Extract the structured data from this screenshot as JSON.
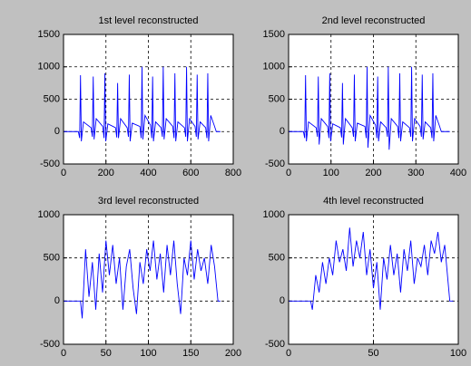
{
  "chart_data": [
    {
      "type": "line",
      "title": "1st level reconstructed",
      "color": "#0000ff",
      "grid": true,
      "xlim": [
        0,
        800
      ],
      "xticks": [
        0,
        200,
        400,
        600,
        800
      ],
      "ylim": [
        -500,
        1500
      ],
      "yticks": [
        -500,
        0,
        500,
        1000,
        1500
      ],
      "x": [
        0,
        70,
        76,
        80,
        84,
        94,
        130,
        136,
        140,
        144,
        154,
        185,
        191,
        195,
        199,
        209,
        245,
        251,
        255,
        259,
        269,
        300,
        306,
        310,
        314,
        324,
        360,
        366,
        370,
        374,
        384,
        410,
        416,
        420,
        424,
        434,
        460,
        466,
        470,
        474,
        484,
        515,
        521,
        525,
        529,
        539,
        570,
        576,
        580,
        584,
        594,
        620,
        626,
        630,
        634,
        644,
        670,
        676,
        680,
        684,
        694,
        710,
        720,
        740
      ],
      "values": [
        0,
        0,
        -100,
        870,
        -150,
        150,
        60,
        -80,
        850,
        -120,
        200,
        80,
        -100,
        900,
        -150,
        120,
        60,
        -90,
        750,
        -100,
        200,
        60,
        -80,
        880,
        -150,
        130,
        80,
        -100,
        1000,
        -120,
        250,
        100,
        -100,
        850,
        -150,
        150,
        60,
        -80,
        1000,
        -120,
        200,
        80,
        -100,
        900,
        -150,
        150,
        60,
        -80,
        1000,
        -150,
        200,
        80,
        -80,
        880,
        -120,
        150,
        60,
        -100,
        900,
        -150,
        250,
        100,
        0,
        0
      ]
    },
    {
      "type": "line",
      "title": "2nd level reconstructed",
      "color": "#0000ff",
      "grid": true,
      "xlim": [
        0,
        400
      ],
      "xticks": [
        0,
        100,
        200,
        300,
        400
      ],
      "ylim": [
        -500,
        1500
      ],
      "yticks": [
        -500,
        0,
        500,
        1000,
        1500
      ],
      "x": [
        0,
        35,
        38,
        40,
        42,
        47,
        65,
        68,
        70,
        72,
        77,
        92,
        95,
        97,
        99,
        104,
        122,
        125,
        127,
        129,
        134,
        150,
        153,
        155,
        157,
        162,
        180,
        183,
        185,
        187,
        192,
        205,
        208,
        210,
        212,
        217,
        230,
        233,
        235,
        237,
        242,
        257,
        260,
        262,
        264,
        269,
        285,
        288,
        290,
        292,
        297,
        310,
        313,
        315,
        317,
        322,
        335,
        338,
        340,
        342,
        347,
        355,
        360,
        380
      ],
      "values": [
        0,
        0,
        -100,
        870,
        -150,
        150,
        60,
        -80,
        850,
        -200,
        200,
        80,
        -100,
        900,
        -150,
        120,
        60,
        -90,
        750,
        -200,
        200,
        60,
        -80,
        880,
        -150,
        130,
        80,
        -100,
        1000,
        -250,
        250,
        100,
        -100,
        850,
        -150,
        150,
        60,
        -80,
        1000,
        -280,
        200,
        80,
        -100,
        900,
        -150,
        150,
        60,
        -80,
        1000,
        -150,
        200,
        80,
        -80,
        880,
        -120,
        150,
        60,
        -100,
        900,
        -150,
        250,
        100,
        0,
        0
      ]
    },
    {
      "type": "line",
      "title": "3rd level reconstructed",
      "color": "#0000ff",
      "grid": true,
      "xlim": [
        0,
        200
      ],
      "xticks": [
        0,
        50,
        100,
        150,
        200
      ],
      "ylim": [
        -500,
        1000
      ],
      "yticks": [
        -500,
        0,
        500,
        1000
      ],
      "x": [
        0,
        20,
        22,
        26,
        30,
        34,
        38,
        42,
        46,
        50,
        54,
        58,
        62,
        66,
        70,
        74,
        78,
        82,
        86,
        90,
        94,
        98,
        102,
        106,
        110,
        114,
        118,
        122,
        126,
        130,
        134,
        138,
        142,
        146,
        150,
        154,
        158,
        162,
        166,
        170,
        174,
        178,
        182,
        185
      ],
      "values": [
        0,
        0,
        -200,
        600,
        50,
        450,
        -100,
        550,
        100,
        700,
        300,
        650,
        200,
        500,
        -100,
        400,
        600,
        150,
        -150,
        450,
        200,
        600,
        350,
        700,
        250,
        550,
        100,
        650,
        300,
        700,
        200,
        -150,
        500,
        300,
        700,
        250,
        600,
        350,
        500,
        200,
        650,
        400,
        0,
        0
      ]
    },
    {
      "type": "line",
      "title": "4th level reconstructed",
      "color": "#0000ff",
      "grid": true,
      "xlim": [
        0,
        100
      ],
      "xticks": [
        0,
        50,
        100
      ],
      "ylim": [
        -500,
        1000
      ],
      "yticks": [
        -500,
        0,
        500,
        1000
      ],
      "x": [
        0,
        13,
        14,
        16,
        18,
        20,
        22,
        24,
        26,
        28,
        30,
        32,
        34,
        36,
        38,
        40,
        42,
        44,
        46,
        48,
        50,
        52,
        54,
        56,
        58,
        60,
        62,
        64,
        66,
        68,
        70,
        72,
        74,
        76,
        78,
        80,
        82,
        84,
        86,
        88,
        90,
        92,
        95,
        97
      ],
      "values": [
        0,
        0,
        -100,
        300,
        100,
        450,
        200,
        500,
        300,
        700,
        450,
        600,
        350,
        850,
        400,
        700,
        500,
        800,
        300,
        600,
        150,
        450,
        -100,
        500,
        250,
        650,
        300,
        550,
        100,
        600,
        350,
        700,
        200,
        500,
        400,
        650,
        300,
        700,
        550,
        800,
        450,
        650,
        0,
        0
      ]
    }
  ]
}
